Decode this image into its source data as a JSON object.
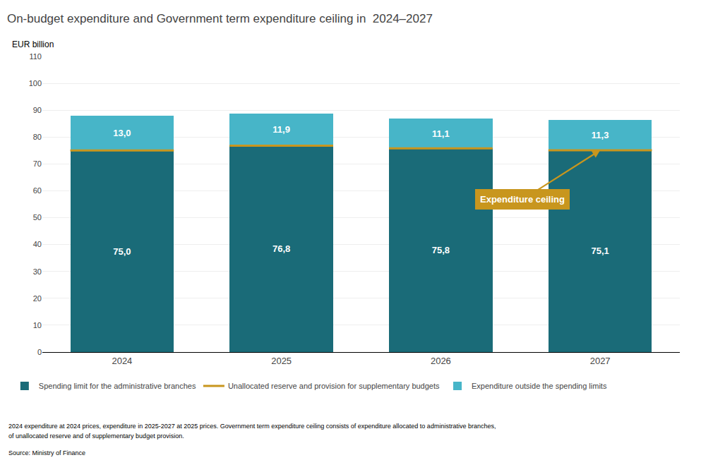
{
  "chart_data": {
    "type": "bar",
    "title": "On-budget expenditure and Government term expenditure ceiling in  2024–2027",
    "ylabel": "EUR billion",
    "categories": [
      "2024",
      "2025",
      "2026",
      "2027"
    ],
    "series": [
      {
        "name": "Spending limit for the administrative branches",
        "color": "#1a6b78",
        "type": "bar",
        "values": [
          75.0,
          76.8,
          75.8,
          75.1
        ],
        "value_labels": [
          "75,0",
          "76,8",
          "75,8",
          "75,1"
        ]
      },
      {
        "name": "Unallocated reserve and provision for supplementary budgets",
        "color": "#c8961e",
        "type": "line",
        "values": [
          75.0,
          76.8,
          75.8,
          75.1
        ]
      },
      {
        "name": "Expenditure outside the spending limits",
        "color": "#47b5c8",
        "type": "bar",
        "values": [
          13.0,
          11.9,
          11.1,
          11.3
        ],
        "value_labels": [
          "13,0",
          "11,9",
          "11,1",
          "11,3"
        ]
      }
    ],
    "stacked": true,
    "data_labels": true,
    "ylim": [
      0,
      110
    ],
    "yticks": [
      0,
      10,
      20,
      30,
      40,
      50,
      60,
      70,
      80,
      90,
      100,
      110
    ],
    "grid": true,
    "legend": "bottom",
    "annotations": [
      {
        "text": "Expenditure ceiling",
        "x": "2027",
        "y": 75.1,
        "color": "#c8961e"
      }
    ],
    "footnotes": [
      "2024 expenditure at 2024 prices, expenditure in 2025-2027 at 2025 prices. Government term expenditure ceiling consists of expenditure allocated to administrative branches,",
      "of unallocated reserve and of supplementary budget provision."
    ],
    "source": "Source: Ministry of Finance"
  }
}
